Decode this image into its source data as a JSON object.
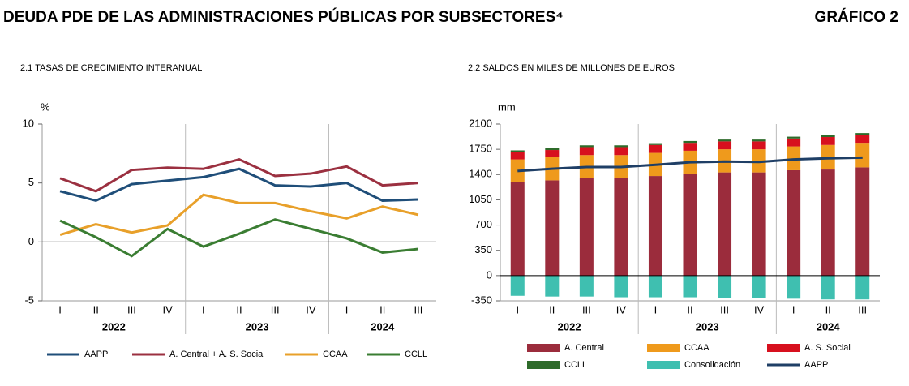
{
  "header": {
    "title": "DEUDA PDE DE LAS ADMINISTRACIONES  PÚBLICAS POR SUBSECTORES⁴",
    "label": "GRÁFICO 2"
  },
  "chart_data": [
    {
      "type": "line",
      "title": "2.1 TASAS DE CRECIMIENTO INTERANUAL",
      "y_unit": "%",
      "categories": [
        "I",
        "II",
        "III",
        "IV",
        "I",
        "II",
        "III",
        "IV",
        "I",
        "II",
        "III"
      ],
      "category_groups": [
        "2022",
        "2023",
        "2024"
      ],
      "ylim": [
        -5,
        10
      ],
      "yticks": [
        -5,
        0,
        5,
        10
      ],
      "series": [
        {
          "name": "AAPP",
          "color": "#1f4e79",
          "values": [
            4.3,
            3.5,
            4.9,
            5.2,
            5.5,
            6.2,
            4.8,
            4.7,
            5.0,
            3.5,
            3.6
          ]
        },
        {
          "name": "A. Central + A. S. Social",
          "color": "#9b3040",
          "values": [
            5.4,
            4.3,
            6.1,
            6.3,
            6.2,
            7.0,
            5.6,
            5.8,
            6.4,
            4.8,
            5.0
          ]
        },
        {
          "name": "CCAA",
          "color": "#e8a02a",
          "values": [
            0.6,
            1.5,
            0.8,
            1.4,
            4.0,
            3.3,
            3.3,
            2.6,
            2.0,
            3.0,
            2.3
          ]
        },
        {
          "name": "CCLL",
          "color": "#3a7d32",
          "values": [
            1.8,
            0.4,
            -1.2,
            1.1,
            -0.4,
            0.7,
            1.9,
            1.1,
            0.3,
            -0.9,
            -0.6
          ]
        }
      ]
    },
    {
      "type": "bar",
      "stacked": true,
      "title": "2.2 SALDOS EN MILES DE MILLONES DE EUROS",
      "y_unit": "mm",
      "categories": [
        "I",
        "II",
        "III",
        "IV",
        "I",
        "II",
        "III",
        "IV",
        "I",
        "II",
        "III"
      ],
      "category_groups": [
        "2022",
        "2023",
        "2024"
      ],
      "ylim": [
        -350,
        2100
      ],
      "yticks": [
        -350,
        0,
        350,
        700,
        1050,
        1400,
        1750,
        2100
      ],
      "series": [
        {
          "name": "A. Central",
          "color": "#9b2c3c",
          "values": [
            1300,
            1320,
            1350,
            1350,
            1380,
            1410,
            1430,
            1430,
            1460,
            1470,
            1500
          ]
        },
        {
          "name": "CCAA",
          "color": "#ef9a1c",
          "values": [
            310,
            320,
            320,
            320,
            320,
            320,
            320,
            320,
            330,
            340,
            340
          ]
        },
        {
          "name": "A. S. Social",
          "color": "#d7101e",
          "values": [
            100,
            100,
            110,
            110,
            110,
            110,
            110,
            110,
            110,
            110,
            110
          ]
        },
        {
          "name": "CCLL",
          "color": "#2e6b2a",
          "values": [
            25,
            25,
            25,
            25,
            25,
            25,
            25,
            25,
            25,
            25,
            25
          ]
        },
        {
          "name": "Consolidación",
          "color": "#3fbfb0",
          "values": [
            -280,
            -290,
            -290,
            -300,
            -300,
            -300,
            -310,
            -310,
            -320,
            -330,
            -330
          ]
        },
        {
          "name": "AAPP",
          "type": "line",
          "color": "#1f3f66",
          "values": [
            1450,
            1480,
            1505,
            1505,
            1535,
            1570,
            1580,
            1575,
            1610,
            1625,
            1635
          ]
        }
      ]
    }
  ]
}
